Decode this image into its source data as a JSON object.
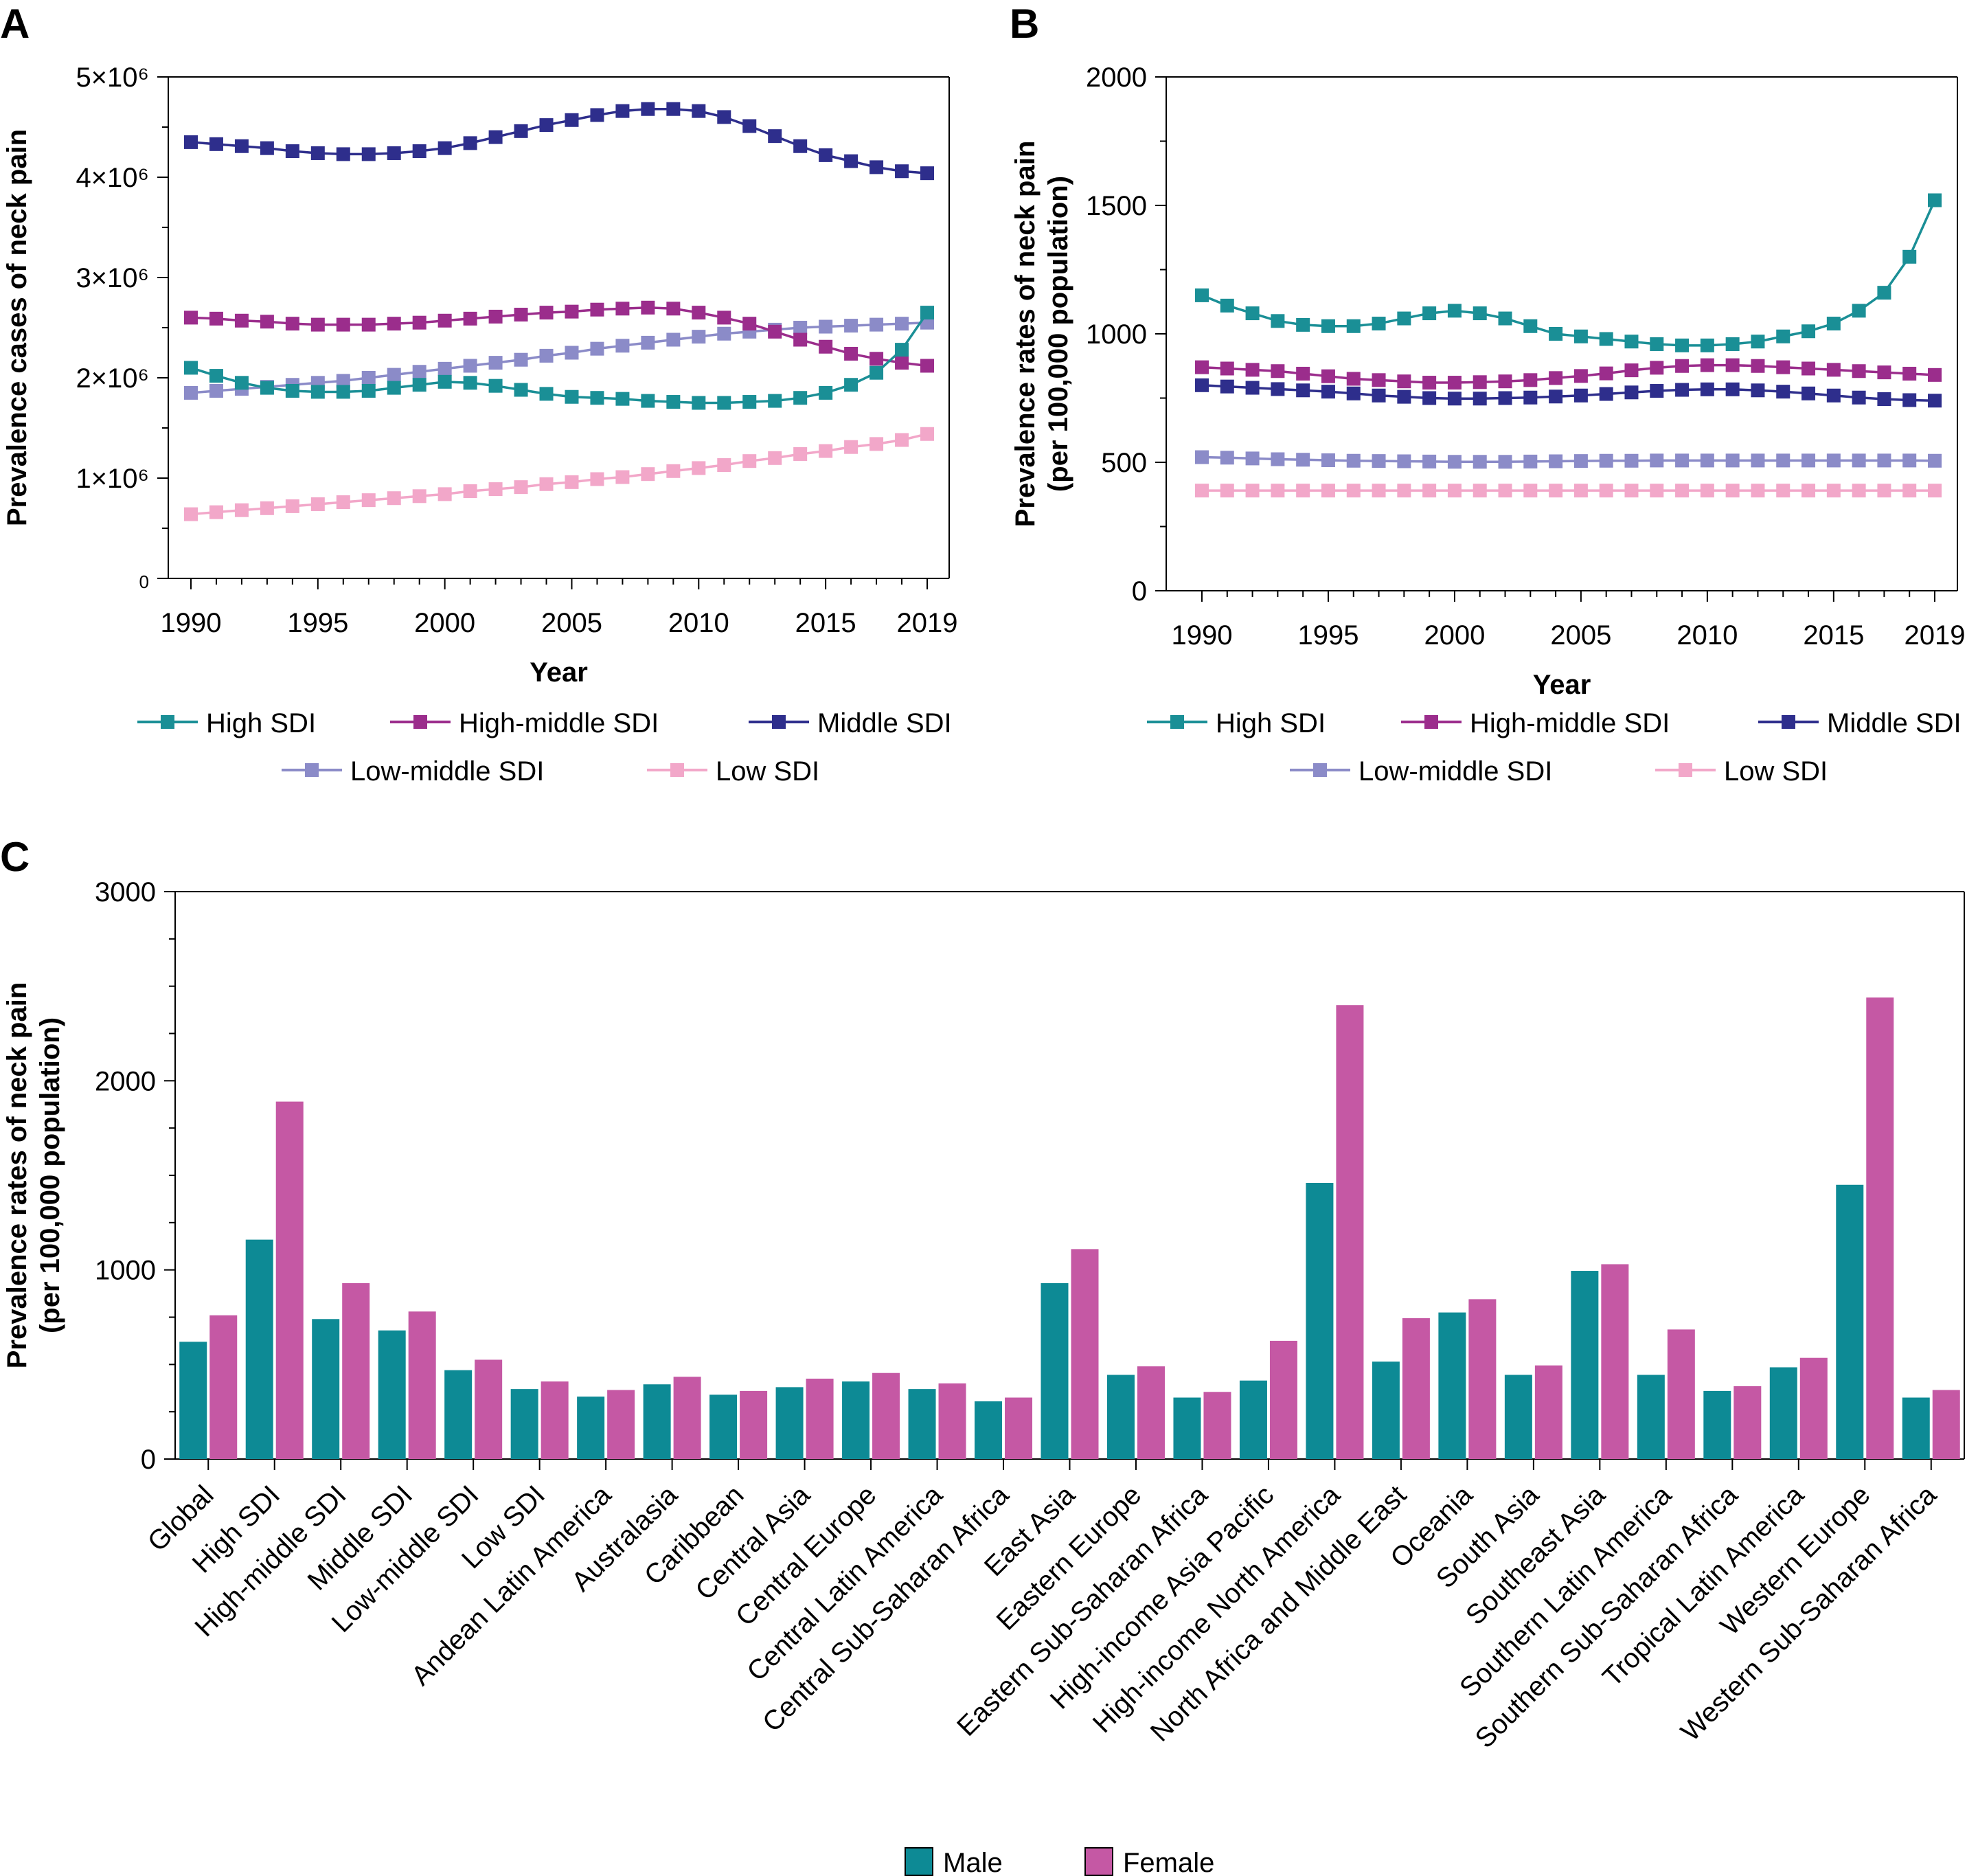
{
  "colors": {
    "high_sdi": "#1a8f96",
    "high_middle_sdi": "#9b2d8c",
    "middle_sdi": "#2e2e8c",
    "low_middle_sdi": "#8b8bc8",
    "low_sdi": "#f2a7c9",
    "male": "#0d8a95",
    "female": "#c558a4"
  },
  "chart_data": [
    {
      "panel": "A",
      "type": "line",
      "xlabel": "Year",
      "ylabel": "Prevalence cases of neck pain",
      "ylim": [
        0,
        5000000
      ],
      "xlim": [
        1990,
        2019
      ],
      "x_ticks": [
        "1990",
        "1995",
        "2000",
        "2005",
        "2010",
        "2015",
        "2019"
      ],
      "y_ticks": [
        {
          "value": 0,
          "label": "0"
        },
        {
          "value": 1000000,
          "label": "1×10⁶"
        },
        {
          "value": 2000000,
          "label": "2×10⁶"
        },
        {
          "value": 3000000,
          "label": "3×10⁶"
        },
        {
          "value": 4000000,
          "label": "4×10⁶"
        },
        {
          "value": 5000000,
          "label": "5×10⁶"
        }
      ],
      "legend": "bottom",
      "x": [
        1990,
        1991,
        1992,
        1993,
        1994,
        1995,
        1996,
        1997,
        1998,
        1999,
        2000,
        2001,
        2002,
        2003,
        2004,
        2005,
        2006,
        2007,
        2008,
        2009,
        2010,
        2011,
        2012,
        2013,
        2014,
        2015,
        2016,
        2017,
        2018,
        2019
      ],
      "series": [
        {
          "name": "High SDI",
          "color_key": "high_sdi",
          "values": [
            2100000,
            2020000,
            1950000,
            1900000,
            1870000,
            1860000,
            1860000,
            1870000,
            1900000,
            1930000,
            1960000,
            1950000,
            1920000,
            1880000,
            1840000,
            1810000,
            1800000,
            1790000,
            1770000,
            1760000,
            1750000,
            1750000,
            1760000,
            1770000,
            1800000,
            1850000,
            1930000,
            2050000,
            2280000,
            2650000
          ]
        },
        {
          "name": "High-middle SDI",
          "color_key": "high_middle_sdi",
          "values": [
            2600000,
            2590000,
            2570000,
            2560000,
            2540000,
            2530000,
            2530000,
            2530000,
            2540000,
            2550000,
            2570000,
            2590000,
            2610000,
            2630000,
            2650000,
            2660000,
            2680000,
            2690000,
            2700000,
            2690000,
            2650000,
            2600000,
            2540000,
            2460000,
            2380000,
            2310000,
            2240000,
            2190000,
            2150000,
            2120000
          ]
        },
        {
          "name": "Middle SDI",
          "color_key": "middle_sdi",
          "values": [
            4350000,
            4330000,
            4310000,
            4290000,
            4260000,
            4240000,
            4230000,
            4230000,
            4240000,
            4260000,
            4290000,
            4340000,
            4400000,
            4460000,
            4520000,
            4570000,
            4620000,
            4660000,
            4680000,
            4680000,
            4660000,
            4600000,
            4510000,
            4410000,
            4310000,
            4220000,
            4160000,
            4100000,
            4060000,
            4040000
          ]
        },
        {
          "name": "Low-middle SDI",
          "color_key": "low_middle_sdi",
          "values": [
            1850000,
            1870000,
            1890000,
            1910000,
            1930000,
            1950000,
            1970000,
            2000000,
            2030000,
            2060000,
            2090000,
            2120000,
            2150000,
            2180000,
            2220000,
            2250000,
            2290000,
            2320000,
            2350000,
            2380000,
            2410000,
            2440000,
            2460000,
            2480000,
            2500000,
            2510000,
            2520000,
            2530000,
            2540000,
            2550000
          ]
        },
        {
          "name": "Low SDI",
          "color_key": "low_sdi",
          "values": [
            640000,
            660000,
            680000,
            700000,
            720000,
            740000,
            760000,
            780000,
            800000,
            820000,
            840000,
            870000,
            890000,
            910000,
            940000,
            960000,
            990000,
            1010000,
            1040000,
            1070000,
            1100000,
            1130000,
            1170000,
            1200000,
            1240000,
            1270000,
            1310000,
            1340000,
            1380000,
            1440000
          ]
        }
      ]
    },
    {
      "panel": "B",
      "type": "line",
      "xlabel": "Year",
      "ylabel": [
        "Prevalence rates of neck pain",
        "(per 100,000 population)"
      ],
      "ylim": [
        0,
        2000
      ],
      "xlim": [
        1990,
        2019
      ],
      "x_ticks": [
        "1990",
        "1995",
        "2000",
        "2005",
        "2010",
        "2015",
        "2019"
      ],
      "y_ticks": [
        {
          "value": 0,
          "label": "0"
        },
        {
          "value": 500,
          "label": "500"
        },
        {
          "value": 1000,
          "label": "1000"
        },
        {
          "value": 1500,
          "label": "1500"
        },
        {
          "value": 2000,
          "label": "2000"
        }
      ],
      "legend": "bottom",
      "x": [
        1990,
        1991,
        1992,
        1993,
        1994,
        1995,
        1996,
        1997,
        1998,
        1999,
        2000,
        2001,
        2002,
        2003,
        2004,
        2005,
        2006,
        2007,
        2008,
        2009,
        2010,
        2011,
        2012,
        2013,
        2014,
        2015,
        2016,
        2017,
        2018,
        2019
      ],
      "series": [
        {
          "name": "High SDI",
          "color_key": "high_sdi",
          "values": [
            1150,
            1110,
            1080,
            1050,
            1035,
            1030,
            1030,
            1040,
            1060,
            1080,
            1090,
            1080,
            1060,
            1030,
            1000,
            990,
            980,
            970,
            960,
            955,
            955,
            960,
            970,
            990,
            1010,
            1040,
            1090,
            1160,
            1300,
            1520
          ]
        },
        {
          "name": "High-middle SDI",
          "color_key": "high_middle_sdi",
          "values": [
            870,
            865,
            860,
            855,
            845,
            835,
            825,
            820,
            815,
            810,
            810,
            812,
            815,
            820,
            828,
            836,
            846,
            858,
            868,
            875,
            878,
            878,
            875,
            870,
            865,
            860,
            855,
            850,
            845,
            840
          ]
        },
        {
          "name": "Middle SDI",
          "color_key": "middle_sdi",
          "values": [
            800,
            795,
            790,
            785,
            780,
            775,
            768,
            760,
            755,
            750,
            748,
            748,
            750,
            752,
            756,
            760,
            766,
            772,
            778,
            782,
            784,
            784,
            780,
            775,
            768,
            760,
            752,
            746,
            742,
            740
          ]
        },
        {
          "name": "Low-middle SDI",
          "color_key": "low_middle_sdi",
          "values": [
            520,
            518,
            515,
            512,
            510,
            508,
            506,
            505,
            504,
            503,
            502,
            502,
            502,
            503,
            504,
            505,
            506,
            506,
            507,
            507,
            507,
            507,
            507,
            507,
            507,
            507,
            507,
            507,
            507,
            506
          ]
        },
        {
          "name": "Low SDI",
          "color_key": "low_sdi",
          "values": [
            390,
            390,
            390,
            390,
            390,
            390,
            390,
            390,
            390,
            390,
            390,
            390,
            390,
            390,
            390,
            390,
            390,
            390,
            390,
            390,
            390,
            390,
            390,
            390,
            390,
            390,
            390,
            390,
            390,
            390
          ]
        }
      ]
    },
    {
      "panel": "C",
      "type": "bar",
      "ylabel": [
        "Prevalence rates of neck pain",
        "(per 100,000 population)"
      ],
      "ylim": [
        0,
        3000
      ],
      "y_ticks": [
        {
          "value": 0,
          "label": "0"
        },
        {
          "value": 1000,
          "label": "1000"
        },
        {
          "value": 2000,
          "label": "2000"
        },
        {
          "value": 3000,
          "label": "3000"
        }
      ],
      "legend": "bottom",
      "categories": [
        "Global",
        "High SDI",
        "High-middle SDI",
        "Middle SDI",
        "Low-middle SDI",
        "Low SDI",
        "Andean Latin America",
        "Australasia",
        "Caribbean",
        "Central Asia",
        "Central Europe",
        "Central Latin America",
        "Central Sub-Saharan Africa",
        "East Asia",
        "Eastern Europe",
        "Eastern Sub-Saharan Africa",
        "High-income Asia Pacific",
        "High-income North America",
        "North Africa and Middle East",
        "Oceania",
        "South Asia",
        "Southeast Asia",
        "Southern Latin America",
        "Southern Sub-Saharan Africa",
        "Tropical Latin America",
        "Western Europe",
        "Western Sub-Saharan Africa"
      ],
      "series": [
        {
          "name": "Male",
          "color_key": "male",
          "values": [
            620,
            1160,
            740,
            680,
            470,
            370,
            330,
            395,
            340,
            380,
            410,
            370,
            305,
            930,
            445,
            325,
            415,
            1460,
            515,
            775,
            445,
            995,
            445,
            360,
            485,
            1450,
            325
          ]
        },
        {
          "name": "Female",
          "color_key": "female",
          "values": [
            760,
            1890,
            930,
            780,
            525,
            410,
            365,
            435,
            360,
            425,
            455,
            400,
            325,
            1110,
            490,
            355,
            625,
            2400,
            745,
            845,
            495,
            1030,
            685,
            385,
            535,
            2440,
            365
          ]
        }
      ]
    }
  ],
  "panel_labels": [
    "A",
    "B",
    "C"
  ]
}
